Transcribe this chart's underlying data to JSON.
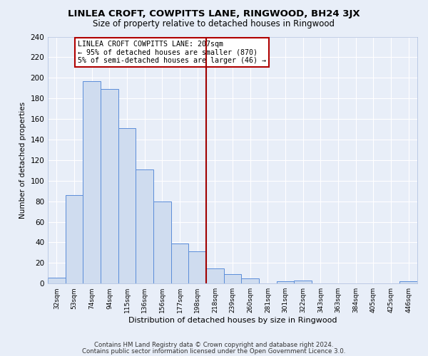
{
  "title": "LINLEA CROFT, COWPITTS LANE, RINGWOOD, BH24 3JX",
  "subtitle": "Size of property relative to detached houses in Ringwood",
  "xlabel": "Distribution of detached houses by size in Ringwood",
  "ylabel": "Number of detached properties",
  "categories": [
    "32sqm",
    "53sqm",
    "74sqm",
    "94sqm",
    "115sqm",
    "136sqm",
    "156sqm",
    "177sqm",
    "198sqm",
    "218sqm",
    "239sqm",
    "260sqm",
    "281sqm",
    "301sqm",
    "322sqm",
    "343sqm",
    "363sqm",
    "384sqm",
    "405sqm",
    "425sqm",
    "446sqm"
  ],
  "values": [
    6,
    86,
    197,
    189,
    151,
    111,
    80,
    39,
    31,
    15,
    9,
    5,
    0,
    2,
    3,
    0,
    0,
    0,
    0,
    0,
    2
  ],
  "bar_color": "#cfdcef",
  "bar_edge_color": "#5b8dd9",
  "vline_x": 8.5,
  "vline_color": "#a00000",
  "annotation_text": "LINLEA CROFT COWPITTS LANE: 207sqm\n← 95% of detached houses are smaller (870)\n5% of semi-detached houses are larger (46) →",
  "annotation_box_color": "#b00000",
  "background_color": "#e8eef8",
  "grid_color": "#ffffff",
  "ylim": [
    0,
    240
  ],
  "yticks": [
    0,
    20,
    40,
    60,
    80,
    100,
    120,
    140,
    160,
    180,
    200,
    220,
    240
  ],
  "footer1": "Contains HM Land Registry data © Crown copyright and database right 2024.",
  "footer2": "Contains public sector information licensed under the Open Government Licence 3.0."
}
